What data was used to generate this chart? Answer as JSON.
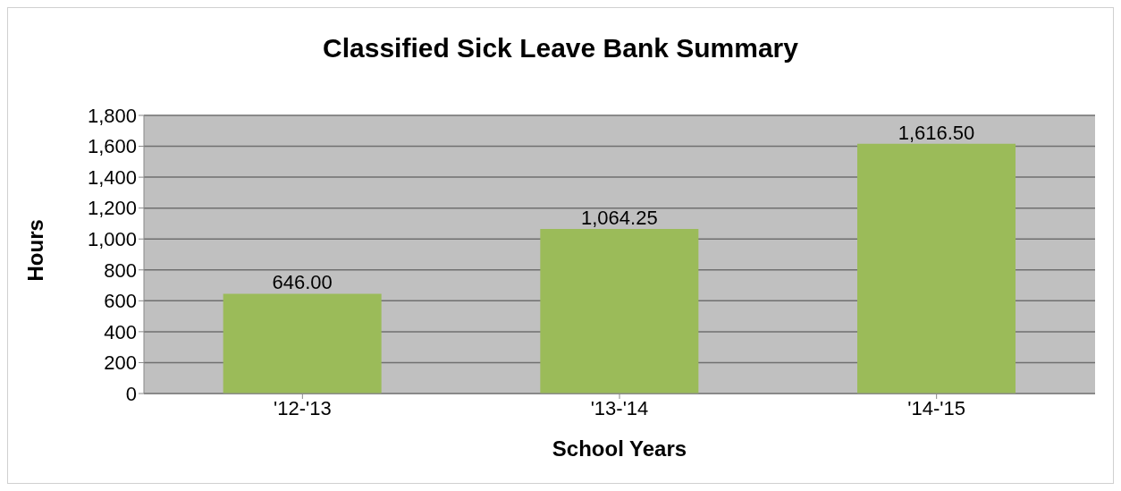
{
  "chart_data": {
    "type": "bar",
    "title": "Classified Sick Leave Bank Summary",
    "xlabel": "School Years",
    "ylabel": "Hours",
    "categories": [
      "'12-'13",
      "'13-'14",
      "'14-'15"
    ],
    "values": [
      646,
      1064.25,
      1616.5
    ],
    "color": "#9bbb59",
    "value_labels": [
      "646.00",
      "1,064.25",
      "1,616.50"
    ],
    "ylim": [
      0,
      1800
    ],
    "yticks": [
      0,
      200,
      400,
      600,
      800,
      {
        "value": 1000,
        "label": "1,000"
      },
      {
        "value": 1200,
        "label": "1,200"
      },
      {
        "value": 1400,
        "label": "1,400"
      },
      {
        "value": 1600,
        "label": "1,600"
      },
      {
        "value": 1800,
        "label": "1,800"
      }
    ],
    "grid": "y",
    "legend": false
  }
}
